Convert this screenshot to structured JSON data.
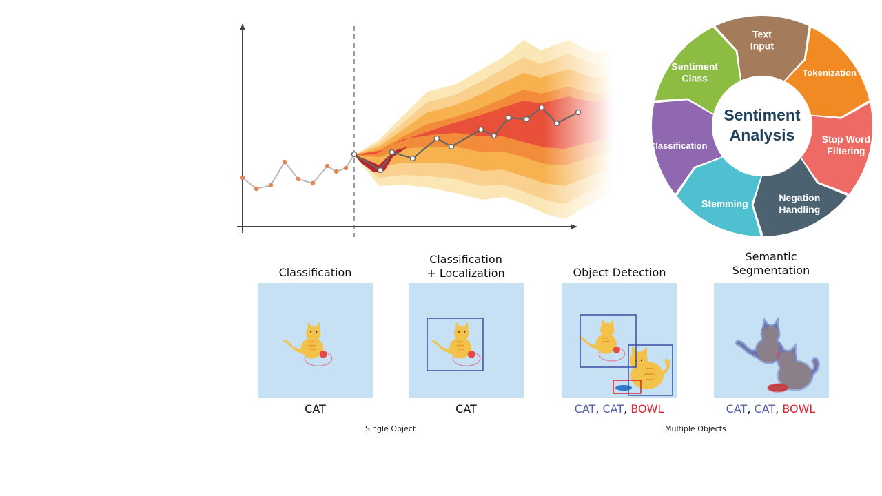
{
  "wheel": {
    "center": [
      "Sentiment",
      "Analysis"
    ],
    "segments": [
      {
        "label": [
          "Text",
          "Input"
        ],
        "color": "#a57c5b"
      },
      {
        "label": [
          "Tokenization"
        ],
        "color": "#f28a23"
      },
      {
        "label": [
          "Stop Word",
          "Filtering"
        ],
        "color": "#ee6a64"
      },
      {
        "label": [
          "Negation",
          "Handling"
        ],
        "color": "#4d6270"
      },
      {
        "label": [
          "Stemming"
        ],
        "color": "#4fc0cf"
      },
      {
        "label": [
          "Classification"
        ],
        "color": "#8f68b0"
      },
      {
        "label": [
          "Sentiment",
          "Class"
        ],
        "color": "#8cbc42"
      }
    ]
  },
  "forecast": {
    "history_color": "#e8834f",
    "forecast_line_color": "#666666"
  },
  "vision": {
    "panels": [
      {
        "title": "Classification"
      },
      {
        "title": "Classification\n+ Localization"
      },
      {
        "title": "Object Detection"
      },
      {
        "title": "Semantic\nSegmentation"
      }
    ],
    "captions": {
      "p1": "CAT",
      "p2": "CAT",
      "p3": [
        {
          "text": "CAT",
          "kind": "blue"
        },
        {
          "text": ", ",
          "kind": "plain"
        },
        {
          "text": "CAT",
          "kind": "blue"
        },
        {
          "text": ", ",
          "kind": "plain"
        },
        {
          "text": "BOWL",
          "kind": "red"
        }
      ],
      "p4": [
        {
          "text": "CAT",
          "kind": "blue"
        },
        {
          "text": ", ",
          "kind": "plain"
        },
        {
          "text": "CAT",
          "kind": "blue"
        },
        {
          "text": ", ",
          "kind": "plain"
        },
        {
          "text": "BOWL",
          "kind": "red"
        }
      ]
    },
    "group_labels": {
      "single": "Single Object",
      "multiple": "Multiple Objects"
    },
    "colors": {
      "tile": "#c6e1f4",
      "box_blue": "#3b4fa0",
      "box_red": "#d7262c",
      "cat": "#f3c24a",
      "seg_cat": "#8b7f8a"
    }
  }
}
